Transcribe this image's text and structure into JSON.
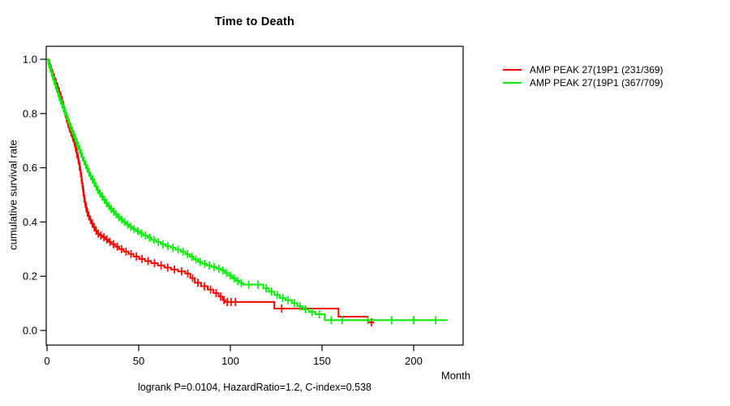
{
  "figure": {
    "title": "Time to Death",
    "caption": "logrank P=0.0104, HazardRatio=1.2, C-index=0.538"
  },
  "chart_data": {
    "type": "line",
    "subtype": "kaplan-meier-step-curves",
    "title": "Time to Death",
    "xlabel": "Month",
    "ylabel": "cumulative survival rate",
    "annotation": "logrank P=0.0104, HazardRatio=1.2, C-index=0.538",
    "x_ticks": [
      0,
      50,
      100,
      150,
      200
    ],
    "y_ticks": [
      0.0,
      0.2,
      0.4,
      0.6,
      0.8,
      1.0
    ],
    "xlim": [
      0,
      220
    ],
    "ylim": [
      0,
      1
    ],
    "grid": false,
    "legend_position": "right-outside",
    "colors": {
      "arm1": "#ff0000",
      "arm2": "#00ee00",
      "axis": "#000000"
    },
    "series": [
      {
        "name": "AMP PEAK 27(19P1 (231/369)",
        "color": "#ff0000",
        "end_month": 178.5,
        "steps": [
          [
            0,
            1.0
          ],
          [
            0.9,
            0.982
          ],
          [
            1.8,
            0.964
          ],
          [
            2.7,
            0.947
          ],
          [
            3.6,
            0.93
          ],
          [
            4.5,
            0.913
          ],
          [
            5.4,
            0.896
          ],
          [
            6.3,
            0.879
          ],
          [
            7.2,
            0.862
          ],
          [
            8,
            0.845
          ],
          [
            8.7,
            0.825
          ],
          [
            9.4,
            0.805
          ],
          [
            10.2,
            0.785
          ],
          [
            11,
            0.765
          ],
          [
            11.8,
            0.748
          ],
          [
            12.7,
            0.731
          ],
          [
            13.6,
            0.714
          ],
          [
            14.5,
            0.695
          ],
          [
            15.3,
            0.675
          ],
          [
            16,
            0.655
          ],
          [
            16.6,
            0.635
          ],
          [
            17.2,
            0.615
          ],
          [
            17.8,
            0.592
          ],
          [
            18.4,
            0.568
          ],
          [
            18.9,
            0.544
          ],
          [
            19.4,
            0.52
          ],
          [
            19.9,
            0.497
          ],
          [
            20.4,
            0.475
          ],
          [
            21,
            0.455
          ],
          [
            21.6,
            0.437
          ],
          [
            22.3,
            0.422
          ],
          [
            23.2,
            0.408
          ],
          [
            24.2,
            0.394
          ],
          [
            25.2,
            0.381
          ],
          [
            26.2,
            0.368
          ],
          [
            27.3,
            0.357
          ],
          [
            28.6,
            0.35
          ],
          [
            30.2,
            0.344
          ],
          [
            31.8,
            0.336
          ],
          [
            33.4,
            0.327
          ],
          [
            35.2,
            0.318
          ],
          [
            37.2,
            0.309
          ],
          [
            39.4,
            0.3
          ],
          [
            41.8,
            0.291
          ],
          [
            44.4,
            0.282
          ],
          [
            47.2,
            0.273
          ],
          [
            50.2,
            0.264
          ],
          [
            53.4,
            0.256
          ],
          [
            56.8,
            0.248
          ],
          [
            60.4,
            0.24
          ],
          [
            64,
            0.232
          ],
          [
            67.6,
            0.225
          ],
          [
            71.4,
            0.218
          ],
          [
            75.4,
            0.21
          ],
          [
            78.2,
            0.193
          ],
          [
            80.6,
            0.176
          ],
          [
            84,
            0.163
          ],
          [
            87.6,
            0.151
          ],
          [
            90.8,
            0.138
          ],
          [
            93.6,
            0.125
          ],
          [
            95.8,
            0.112
          ],
          [
            97.2,
            0.105
          ],
          [
            124,
            0.081
          ],
          [
            159,
            0.051
          ],
          [
            175,
            0.03
          ]
        ],
        "censor_times": [
          1.3,
          2.2,
          3.1,
          4,
          4.9,
          5.8,
          6.7,
          7.5,
          8.3,
          9,
          9.8,
          10.6,
          11.4,
          12.2,
          13.1,
          14,
          14.9,
          15.6,
          16.3,
          17,
          17.6,
          18.2,
          18.7,
          19.2,
          19.7,
          20.2,
          20.7,
          21.3,
          22,
          22.8,
          23.7,
          24.7,
          25.7,
          26.8,
          28,
          29.4,
          31,
          32.6,
          34.3,
          36.2,
          38.3,
          40.6,
          43.1,
          45.8,
          48.7,
          51.8,
          55.1,
          58.6,
          62.2,
          65.8,
          69.5,
          73.4,
          76.8,
          79.4,
          82.3,
          85.8,
          89.2,
          92.2,
          94.7,
          96.5,
          98.3,
          100.4,
          102.8,
          128,
          177
        ]
      },
      {
        "name": "AMP PEAK 27(19P1 (367/709)",
        "color": "#00ee00",
        "end_month": 218.5,
        "steps": [
          [
            0,
            1.0
          ],
          [
            0.7,
            0.984
          ],
          [
            1.4,
            0.968
          ],
          [
            2.1,
            0.952
          ],
          [
            2.8,
            0.937
          ],
          [
            3.5,
            0.922
          ],
          [
            4.2,
            0.907
          ],
          [
            4.9,
            0.892
          ],
          [
            5.6,
            0.877
          ],
          [
            6.3,
            0.863
          ],
          [
            7,
            0.849
          ],
          [
            7.8,
            0.835
          ],
          [
            8.6,
            0.82
          ],
          [
            9.4,
            0.806
          ],
          [
            10.2,
            0.792
          ],
          [
            11,
            0.778
          ],
          [
            11.8,
            0.764
          ],
          [
            12.6,
            0.75
          ],
          [
            13.4,
            0.737
          ],
          [
            14.2,
            0.723
          ],
          [
            15,
            0.709
          ],
          [
            15.8,
            0.695
          ],
          [
            16.6,
            0.681
          ],
          [
            17.4,
            0.667
          ],
          [
            18.2,
            0.653
          ],
          [
            19,
            0.639
          ],
          [
            19.8,
            0.625
          ],
          [
            20.7,
            0.611
          ],
          [
            21.6,
            0.597
          ],
          [
            22.5,
            0.583
          ],
          [
            23.4,
            0.57
          ],
          [
            24.3,
            0.557
          ],
          [
            25.3,
            0.544
          ],
          [
            26.3,
            0.531
          ],
          [
            27.3,
            0.518
          ],
          [
            28.4,
            0.506
          ],
          [
            29.5,
            0.494
          ],
          [
            30.7,
            0.482
          ],
          [
            31.9,
            0.47
          ],
          [
            33.1,
            0.459
          ],
          [
            34.4,
            0.448
          ],
          [
            35.7,
            0.438
          ],
          [
            37.1,
            0.428
          ],
          [
            38.5,
            0.418
          ],
          [
            40,
            0.409
          ],
          [
            41.5,
            0.4
          ],
          [
            43.1,
            0.391
          ],
          [
            44.8,
            0.382
          ],
          [
            46.6,
            0.374
          ],
          [
            48.5,
            0.366
          ],
          [
            50.5,
            0.358
          ],
          [
            52.6,
            0.35
          ],
          [
            54.8,
            0.342
          ],
          [
            57.1,
            0.334
          ],
          [
            59.5,
            0.326
          ],
          [
            62,
            0.318
          ],
          [
            64.6,
            0.311
          ],
          [
            67.3,
            0.305
          ],
          [
            70.1,
            0.298
          ],
          [
            73,
            0.29
          ],
          [
            75.5,
            0.281
          ],
          [
            77.8,
            0.272
          ],
          [
            80,
            0.262
          ],
          [
            82.3,
            0.253
          ],
          [
            84.7,
            0.246
          ],
          [
            87.2,
            0.24
          ],
          [
            89.8,
            0.234
          ],
          [
            92.5,
            0.228
          ],
          [
            95,
            0.221
          ],
          [
            97,
            0.212
          ],
          [
            99,
            0.202
          ],
          [
            101,
            0.192
          ],
          [
            103,
            0.183
          ],
          [
            105,
            0.175
          ],
          [
            107,
            0.169
          ],
          [
            118,
            0.156
          ],
          [
            121,
            0.143
          ],
          [
            124,
            0.131
          ],
          [
            127,
            0.12
          ],
          [
            130,
            0.112
          ],
          [
            133.5,
            0.101
          ],
          [
            136.5,
            0.089
          ],
          [
            139.5,
            0.078
          ],
          [
            143,
            0.068
          ],
          [
            146.5,
            0.06
          ],
          [
            151.5,
            0.038
          ]
        ],
        "censor_times": [
          1,
          1.8,
          2.5,
          3.2,
          3.9,
          4.6,
          5.3,
          6,
          6.7,
          7.4,
          8.2,
          9,
          9.8,
          10.6,
          11.4,
          12.2,
          13,
          13.8,
          14.6,
          15.4,
          16.2,
          17,
          17.8,
          18.6,
          19.4,
          20.2,
          21.1,
          22,
          22.9,
          23.8,
          24.8,
          25.8,
          26.8,
          27.8,
          28.9,
          30.1,
          31.3,
          32.5,
          33.7,
          35,
          36.4,
          37.8,
          39.2,
          40.7,
          42.3,
          44,
          45.7,
          47.5,
          49.5,
          51.5,
          53.7,
          55.9,
          58.3,
          60.7,
          63.3,
          65.9,
          68.7,
          71.5,
          74.2,
          76.6,
          79,
          81.2,
          83.5,
          86,
          88.5,
          91.1,
          93.7,
          96,
          98,
          100,
          102,
          104,
          106,
          110,
          115,
          119.5,
          122.5,
          125.5,
          128.5,
          131.5,
          135,
          138,
          141,
          144.5,
          148.5,
          155,
          161,
          175,
          188,
          200,
          212
        ]
      }
    ]
  }
}
